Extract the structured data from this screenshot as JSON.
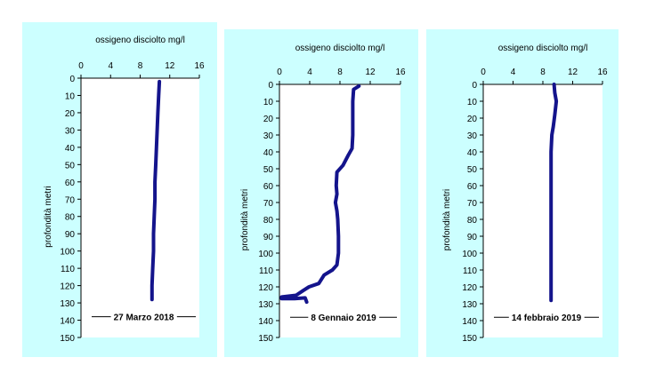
{
  "chart_data": [
    {
      "type": "line",
      "title": "ossigeno disciolto mg/l",
      "xlabel": "ossigeno disciolto mg/l",
      "ylabel": "profondità metri",
      "xlim": [
        0,
        16
      ],
      "ylim": [
        0,
        150
      ],
      "x_ticks": [
        "0",
        "4",
        "8",
        "12",
        "16"
      ],
      "y_ticks": [
        "0",
        "10",
        "20",
        "30",
        "40",
        "50",
        "60",
        "70",
        "80",
        "90",
        "100",
        "110",
        "120",
        "130",
        "140",
        "150"
      ],
      "annotation": "27 Marzo 2018",
      "series": [
        {
          "points": [
            [
              10.6,
              2
            ],
            [
              10.5,
              10
            ],
            [
              10.4,
              20
            ],
            [
              10.3,
              30
            ],
            [
              10.2,
              40
            ],
            [
              10.1,
              50
            ],
            [
              10.0,
              60
            ],
            [
              10.0,
              70
            ],
            [
              9.9,
              80
            ],
            [
              9.8,
              90
            ],
            [
              9.8,
              100
            ],
            [
              9.7,
              110
            ],
            [
              9.6,
              120
            ],
            [
              9.6,
              128
            ]
          ]
        }
      ]
    },
    {
      "type": "line",
      "title": "ossigeno disciolto mg/l",
      "xlabel": "ossigeno disciolto mg/l",
      "ylabel": "profondità metri",
      "xlim": [
        0,
        16
      ],
      "ylim": [
        0,
        150
      ],
      "x_ticks": [
        "0",
        "4",
        "8",
        "12",
        "16"
      ],
      "y_ticks": [
        "0",
        "10",
        "20",
        "30",
        "40",
        "50",
        "60",
        "70",
        "80",
        "90",
        "100",
        "110",
        "120",
        "130",
        "140",
        "150"
      ],
      "annotation": "8 Gennaio 2019",
      "series": [
        {
          "points": [
            [
              10.5,
              1
            ],
            [
              9.8,
              3
            ],
            [
              9.7,
              10
            ],
            [
              9.7,
              20
            ],
            [
              9.7,
              30
            ],
            [
              9.6,
              38
            ],
            [
              9.1,
              42
            ],
            [
              8.4,
              48
            ],
            [
              7.6,
              52
            ],
            [
              7.5,
              60
            ],
            [
              7.6,
              65
            ],
            [
              7.4,
              70
            ],
            [
              7.6,
              75
            ],
            [
              7.7,
              80
            ],
            [
              7.8,
              90
            ],
            [
              7.8,
              100
            ],
            [
              7.6,
              107
            ],
            [
              7.0,
              110
            ],
            [
              5.9,
              113
            ],
            [
              5.2,
              118
            ],
            [
              3.9,
              120
            ],
            [
              3.2,
              122
            ],
            [
              2.2,
              125
            ],
            [
              0.3,
              126
            ],
            [
              0.3,
              127
            ],
            [
              2.0,
              127
            ],
            [
              3.4,
              126.5
            ],
            [
              3.6,
              129
            ]
          ]
        }
      ]
    },
    {
      "type": "line",
      "title": "ossigeno disciolto mg/l",
      "xlabel": "ossigeno disciolto mg/l",
      "ylabel": "profondità metri",
      "xlim": [
        0,
        16
      ],
      "ylim": [
        0,
        150
      ],
      "x_ticks": [
        "0",
        "4",
        "8",
        "12",
        "16"
      ],
      "y_ticks": [
        "0",
        "10",
        "20",
        "30",
        "40",
        "50",
        "60",
        "70",
        "80",
        "90",
        "100",
        "110",
        "120",
        "130",
        "140",
        "150"
      ],
      "annotation": "14 febbraio 2019",
      "series": [
        {
          "points": [
            [
              9.5,
              0
            ],
            [
              9.6,
              5
            ],
            [
              9.8,
              10
            ],
            [
              9.6,
              18
            ],
            [
              9.4,
              25
            ],
            [
              9.2,
              30
            ],
            [
              9.1,
              40
            ],
            [
              9.1,
              60
            ],
            [
              9.1,
              80
            ],
            [
              9.1,
              100
            ],
            [
              9.1,
              120
            ],
            [
              9.1,
              128
            ]
          ]
        }
      ]
    }
  ]
}
